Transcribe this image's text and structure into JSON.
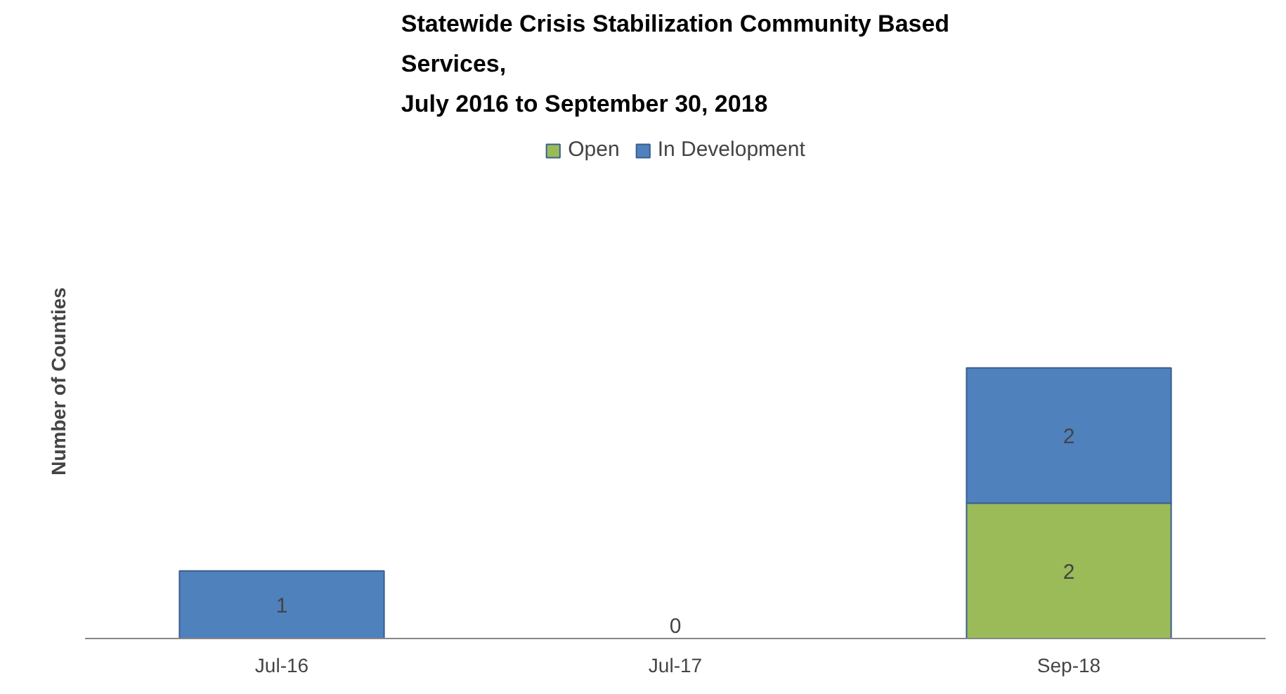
{
  "chart_data": {
    "type": "bar",
    "stacked": true,
    "title": "Statewide Crisis Stabilization Community Based\nServices,\nJuly 2016  to September 30, 2018",
    "ylabel": "Number of Counties",
    "categories": [
      "Jul-16",
      "Jul-17",
      "Sep-18"
    ],
    "series": [
      {
        "name": "Open",
        "color": "#9bbb59",
        "values": [
          0,
          0,
          2
        ],
        "value_labels": [
          null,
          null,
          "2"
        ]
      },
      {
        "name": "In Development",
        "color": "#4f81bd",
        "values": [
          1,
          0,
          2
        ],
        "value_labels": [
          "1",
          "0",
          "2"
        ]
      }
    ],
    "legend": "top",
    "grid": false,
    "tick_labels": "x"
  }
}
